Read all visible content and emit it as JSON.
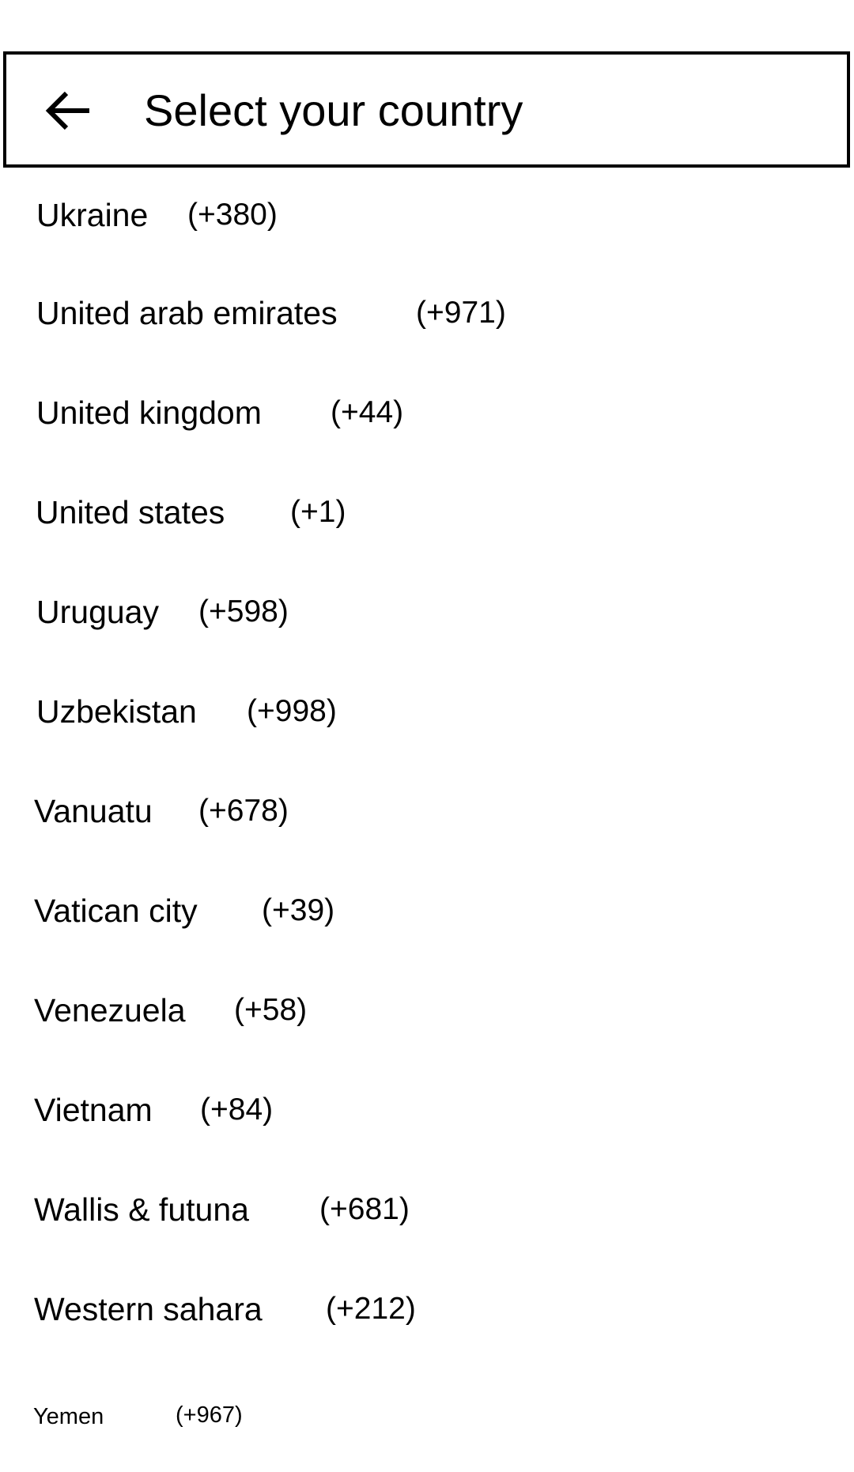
{
  "header": {
    "title": "Select your country",
    "back_icon": "arrow-left-icon"
  },
  "countries": [
    {
      "name": "Ukraine",
      "code": "(+380)"
    },
    {
      "name": "United arab emirates",
      "code": "(+971)"
    },
    {
      "name": "United kingdom",
      "code": "(+44)"
    },
    {
      "name": "United states",
      "code": "(+1)"
    },
    {
      "name": "Uruguay",
      "code": "(+598)"
    },
    {
      "name": "Uzbekistan",
      "code": "(+998)"
    },
    {
      "name": "Vanuatu",
      "code": "(+678)"
    },
    {
      "name": "Vatican city",
      "code": "(+39)"
    },
    {
      "name": "Venezuela",
      "code": "(+58)"
    },
    {
      "name": "Vietnam",
      "code": "(+84)"
    },
    {
      "name": "Wallis & futuna",
      "code": "(+681)"
    },
    {
      "name": "Western sahara",
      "code": "(+212)"
    },
    {
      "name": "Yemen",
      "code": "(+967)"
    }
  ]
}
